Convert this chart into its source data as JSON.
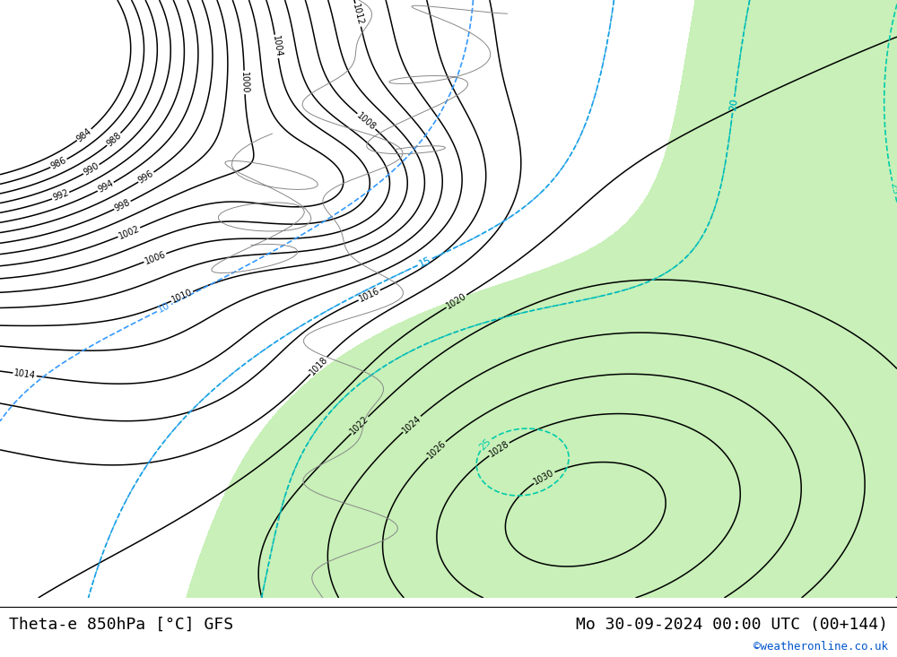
{
  "title_left": "Theta-e 850hPa [°C] GFS",
  "title_right": "Mo 30-09-2024 00:00 UTC (00+144)",
  "credit": "©weatheronline.co.uk",
  "bg_color": "#dedede",
  "green_fill": "#c8f0b8",
  "font_family": "DejaVu Sans Mono",
  "title_fontsize": 13,
  "credit_fontsize": 9,
  "contour_color_black": "#000000",
  "contour_color_blue": "#3399ff",
  "contour_color_cyan": "#00ccaa",
  "contour_color_yellow_green": "#aacc00",
  "contour_color_cyan2": "#00aacc",
  "coast_color": "#888888"
}
